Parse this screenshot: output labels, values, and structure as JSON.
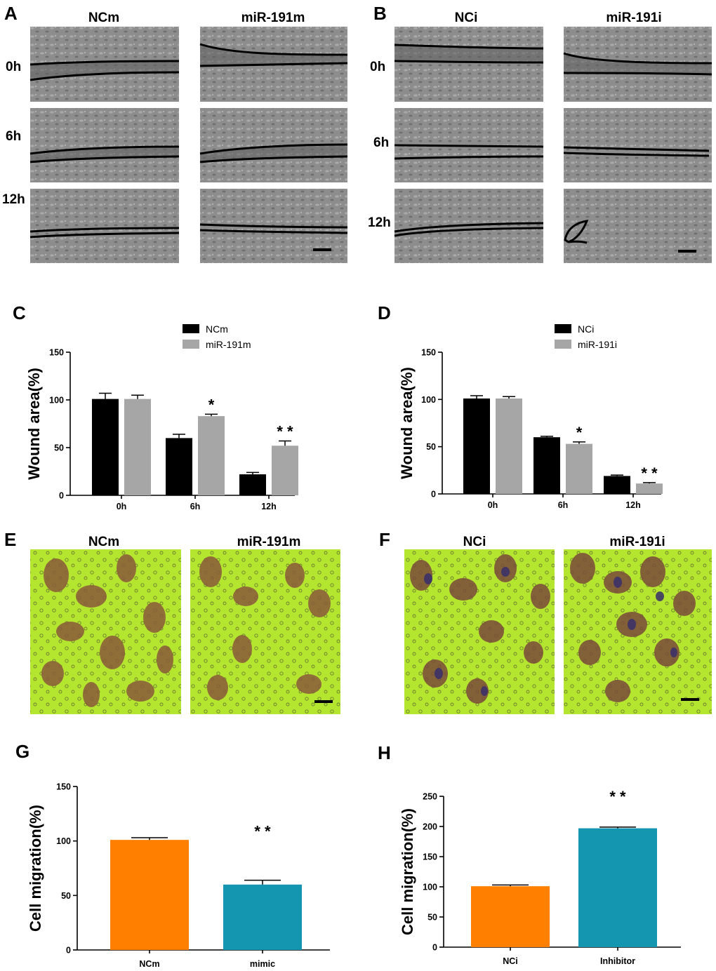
{
  "panels": {
    "A": {
      "label": "A",
      "col_headers": [
        "NCm",
        "miR-191m"
      ],
      "row_labels": [
        "0h",
        "6h",
        "12h"
      ]
    },
    "B": {
      "label": "B",
      "col_headers": [
        "NCi",
        "miR-191i"
      ],
      "row_labels": [
        "0h",
        "6h",
        "12h"
      ]
    },
    "E": {
      "label": "E",
      "col_headers": [
        "NCm",
        "miR-191m"
      ]
    },
    "F": {
      "label": "F",
      "col_headers": [
        "NCi",
        "miR-191i"
      ]
    },
    "C": {
      "label": "C"
    },
    "D": {
      "label": "D"
    },
    "G": {
      "label": "G"
    },
    "H": {
      "label": "H"
    }
  },
  "colors": {
    "black_bar": "#000000",
    "gray_bar": "#a6a6a6",
    "orange_bar": "#ff8000",
    "teal_bar": "#1496b0",
    "micro_bg": "#8c8c8c",
    "stain_bg": "#b8e830",
    "cell_stain": "#8a5a3a"
  },
  "chart_data": [
    {
      "id": "C",
      "type": "bar",
      "categories": [
        "0h",
        "6h",
        "12h"
      ],
      "series": [
        {
          "name": "NCm",
          "values": [
            101,
            60,
            22
          ],
          "errors": [
            6,
            4,
            2
          ],
          "color": "#000000"
        },
        {
          "name": "miR-191m",
          "values": [
            101,
            83,
            52
          ],
          "errors": [
            4,
            2,
            5
          ],
          "color": "#a6a6a6"
        }
      ],
      "annotations": [
        {
          "category": "6h",
          "series": 1,
          "text": "*"
        },
        {
          "category": "12h",
          "series": 1,
          "text": "* *"
        }
      ],
      "ylabel": "Wound area(%)",
      "xlabel": "",
      "ylim": [
        0,
        150
      ],
      "yticks": [
        "0",
        "50",
        "100",
        "150"
      ],
      "legend_position": "top-right",
      "grid": false
    },
    {
      "id": "D",
      "type": "bar",
      "categories": [
        "0h",
        "6h",
        "12h"
      ],
      "series": [
        {
          "name": "NCi",
          "values": [
            101,
            60,
            19
          ],
          "errors": [
            3,
            1,
            1
          ],
          "color": "#000000"
        },
        {
          "name": "miR-191i",
          "values": [
            101,
            53,
            11
          ],
          "errors": [
            2,
            2,
            1
          ],
          "color": "#a6a6a6"
        }
      ],
      "annotations": [
        {
          "category": "6h",
          "series": 1,
          "text": "*"
        },
        {
          "category": "12h",
          "series": 1,
          "text": "* *"
        }
      ],
      "ylabel": "Wound area(%)",
      "xlabel": "",
      "ylim": [
        0,
        150
      ],
      "yticks": [
        "0",
        "50",
        "100",
        "150"
      ],
      "legend_position": "top-right",
      "grid": false
    },
    {
      "id": "G",
      "type": "bar",
      "categories": [
        "NCm",
        "mimic"
      ],
      "values": [
        101,
        60
      ],
      "errors": [
        2,
        4
      ],
      "colors": [
        "#ff8000",
        "#1496b0"
      ],
      "annotations": [
        {
          "category": "mimic",
          "text": "* *"
        }
      ],
      "ylabel": "Cell migration(%)",
      "xlabel": "",
      "ylim": [
        0,
        150
      ],
      "yticks": [
        "0",
        "50",
        "100",
        "150"
      ],
      "grid": false
    },
    {
      "id": "H",
      "type": "bar",
      "categories": [
        "NCi",
        "Inhibitor"
      ],
      "values": [
        101,
        197
      ],
      "errors": [
        2,
        2
      ],
      "colors": [
        "#ff8000",
        "#1496b0"
      ],
      "annotations": [
        {
          "category": "Inhibitor",
          "text": "* *"
        }
      ],
      "ylabel": "Cell migration(%)",
      "xlabel": "",
      "ylim": [
        0,
        250
      ],
      "yticks": [
        "0",
        "50",
        "100",
        "150",
        "200",
        "250"
      ],
      "grid": false
    }
  ]
}
